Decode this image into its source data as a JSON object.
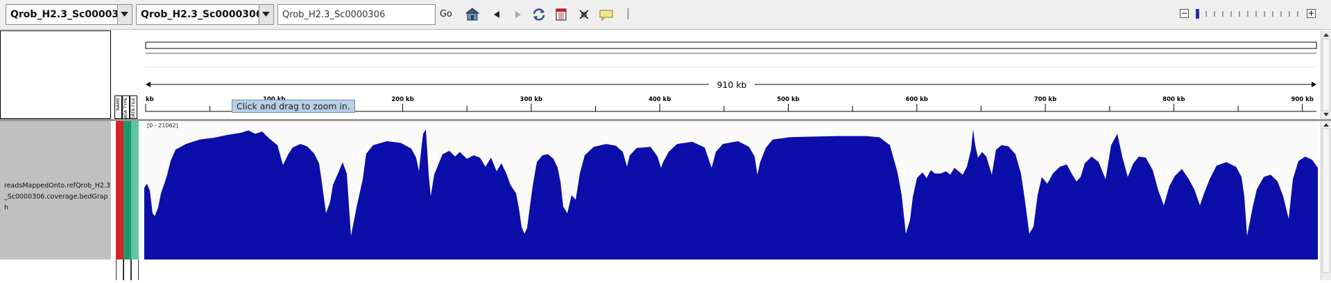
{
  "toolbar": {
    "genome_label": "Qrob_H2.3_Sc00003...",
    "chromosome_label": "Qrob_H2.3_Sc0000306",
    "locus_value": "Qrob_H2.3_Sc0000306",
    "go_label": "Go",
    "icons": [
      "home-icon",
      "back-icon",
      "forward-icon",
      "refresh-icon",
      "roi-icon",
      "fit-window-icon",
      "popup-info-icon"
    ],
    "zoom_level": 1
  },
  "attributes": {
    "columns": [
      "NAME",
      "DATA TYPE",
      "DATA FILE"
    ]
  },
  "ruler": {
    "span_label": "910 kb",
    "ticks": [
      {
        "kb": 0,
        "label": "kb"
      },
      {
        "kb": 100,
        "label": "100 kb"
      },
      {
        "kb": 200,
        "label": "200 kb"
      },
      {
        "kb": 300,
        "label": "300 kb"
      },
      {
        "kb": 400,
        "label": "400 kb"
      },
      {
        "kb": 500,
        "label": "500 kb"
      },
      {
        "kb": 600,
        "label": "600 kb"
      },
      {
        "kb": 700,
        "label": "700 kb"
      },
      {
        "kb": 800,
        "label": "800 kb"
      },
      {
        "kb": 900,
        "label": "900 kb"
      }
    ],
    "tooltip": "Click and drag to zoom in."
  },
  "track": {
    "name": "readsMappedOnto.refQrob_H2.3_Sc0000306.coverage.bedGraph",
    "data_range": "[0 - 21062]",
    "color": "#0b0ea8",
    "attribute_colors": [
      "#d4232a",
      "#1a9a6b",
      "#63c4a3"
    ]
  }
}
